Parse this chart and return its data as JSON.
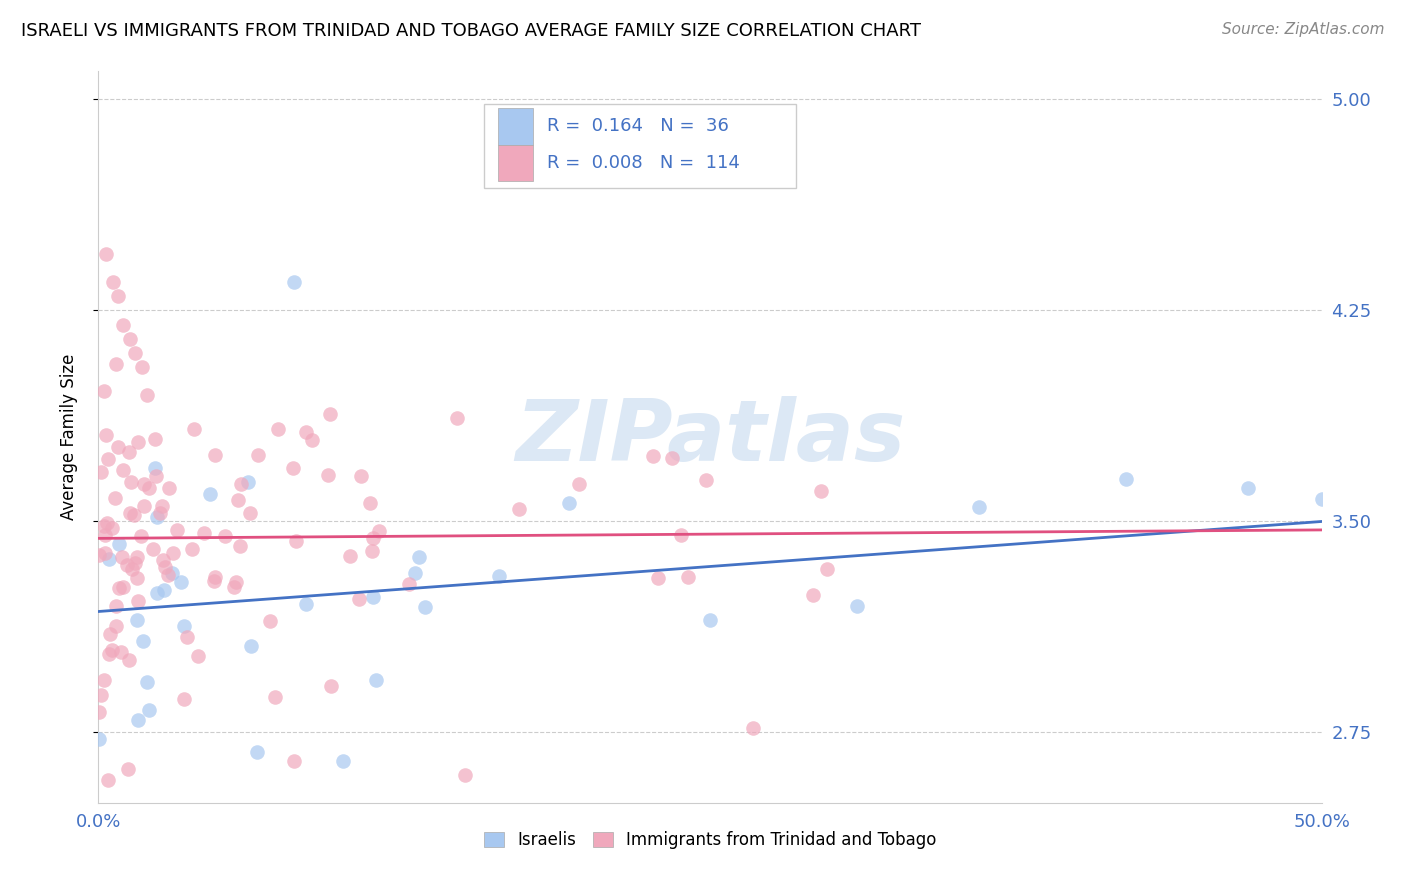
{
  "title": "ISRAELI VS IMMIGRANTS FROM TRINIDAD AND TOBAGO AVERAGE FAMILY SIZE CORRELATION CHART",
  "source": "Source: ZipAtlas.com",
  "ylabel": "Average Family Size",
  "xlim": [
    0,
    0.5
  ],
  "ylim": [
    2.5,
    5.1
  ],
  "yticks": [
    2.75,
    3.5,
    4.25,
    5.0
  ],
  "xticks": [
    0.0,
    0.1,
    0.2,
    0.3,
    0.4,
    0.5
  ],
  "xticklabels": [
    "0.0%",
    "",
    "",
    "",
    "",
    "50.0%"
  ],
  "yticklabels_right": [
    "2.75",
    "3.50",
    "4.25",
    "5.00"
  ],
  "legend_R1": "0.164",
  "legend_N1": "36",
  "legend_R2": "0.008",
  "legend_N2": "114",
  "israelis_color": "#a8c8f0",
  "trinidad_color": "#f0a8bc",
  "line_israeli_color": "#4472c4",
  "line_trinidad_color": "#e05080",
  "watermark": "ZIPatlas",
  "isr_line_x0": 0.0,
  "isr_line_x1": 0.5,
  "isr_line_y0": 3.18,
  "isr_line_y1": 3.5,
  "trin_line_x0": 0.0,
  "trin_line_x1": 0.5,
  "trin_line_y0": 3.44,
  "trin_line_y1": 3.47,
  "grid_color": "#cccccc",
  "title_fontsize": 13,
  "source_fontsize": 11,
  "tick_fontsize": 13,
  "ylabel_fontsize": 12
}
